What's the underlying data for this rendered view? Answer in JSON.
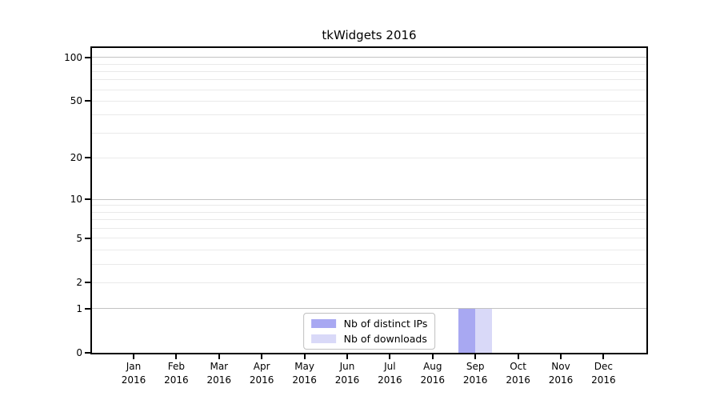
{
  "page": {
    "background": "#ffffff"
  },
  "chart_data": {
    "type": "bar",
    "title": "tkWidgets 2016",
    "categories": [
      "Jan",
      "Feb",
      "Mar",
      "Apr",
      "May",
      "Jun",
      "Jul",
      "Aug",
      "Sep",
      "Oct",
      "Nov",
      "Dec"
    ],
    "category_sublabel": "2016",
    "series": [
      {
        "name": "Nb of distinct IPs",
        "color": "#a8a8f2",
        "values": [
          0,
          0,
          0,
          0,
          0,
          0,
          0,
          0,
          1,
          0,
          0,
          0
        ]
      },
      {
        "name": "Nb of downloads",
        "color": "#d9d9f8",
        "values": [
          0,
          0,
          0,
          0,
          0,
          0,
          0,
          0,
          1,
          0,
          0,
          0
        ]
      }
    ],
    "xlabel": "",
    "ylabel": "",
    "y_scale": "log1p",
    "ylim": [
      0,
      116
    ],
    "y_ticks": [
      0,
      1,
      2,
      5,
      10,
      20,
      50,
      100
    ],
    "grid": "horizontal",
    "major_gridlines": [
      1,
      10,
      100
    ],
    "minor_gridlines": [
      2,
      3,
      4,
      5,
      6,
      7,
      8,
      9,
      20,
      30,
      40,
      50,
      60,
      70,
      80,
      90
    ],
    "legend_position": "bottom-center",
    "colors": {
      "axis": "#000000",
      "grid_major": "#c2c2c2",
      "grid_minor": "#eaeaea",
      "legend_border": "#c0c0c0",
      "text": "#000000"
    }
  }
}
